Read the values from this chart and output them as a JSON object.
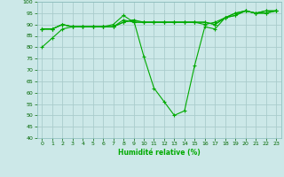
{
  "xlabel": "Humidité relative (%)",
  "background_color": "#cce8e8",
  "grid_color": "#aacccc",
  "line_color": "#00aa00",
  "xlim": [
    -0.5,
    23.5
  ],
  "ylim": [
    40,
    100
  ],
  "yticks": [
    40,
    45,
    50,
    55,
    60,
    65,
    70,
    75,
    80,
    85,
    90,
    95,
    100
  ],
  "xticks": [
    0,
    1,
    2,
    3,
    4,
    5,
    6,
    7,
    8,
    9,
    10,
    11,
    12,
    13,
    14,
    15,
    16,
    17,
    18,
    19,
    20,
    21,
    22,
    23
  ],
  "series": [
    {
      "x": [
        0,
        1,
        2,
        3,
        4,
        5,
        6,
        7,
        8,
        9,
        10,
        11,
        12,
        13,
        14,
        15,
        16,
        17,
        18,
        19,
        20,
        21,
        22,
        23
      ],
      "y": [
        80,
        84,
        88,
        89,
        89,
        89,
        89,
        89,
        91,
        92,
        76,
        62,
        56,
        50,
        52,
        72,
        89,
        88,
        93,
        94,
        96,
        95,
        96,
        96
      ]
    },
    {
      "x": [
        0,
        1,
        2,
        3,
        4,
        5,
        6,
        7,
        8,
        9,
        10,
        11,
        12,
        13,
        14,
        15,
        16,
        17,
        18,
        19,
        20,
        21,
        22,
        23
      ],
      "y": [
        88,
        88,
        90,
        89,
        89,
        89,
        89,
        89,
        92,
        91,
        91,
        91,
        91,
        91,
        91,
        91,
        90,
        91,
        93,
        95,
        96,
        95,
        96,
        96
      ]
    },
    {
      "x": [
        0,
        1,
        2,
        3,
        4,
        5,
        6,
        7,
        8,
        9,
        10,
        11,
        12,
        13,
        14,
        15,
        16,
        17,
        18,
        19,
        20,
        21,
        22,
        23
      ],
      "y": [
        88,
        88,
        90,
        89,
        89,
        89,
        89,
        90,
        94,
        91,
        91,
        91,
        91,
        91,
        91,
        91,
        91,
        90,
        93,
        95,
        96,
        95,
        95,
        96
      ]
    },
    {
      "x": [
        0,
        1,
        2,
        3,
        4,
        5,
        6,
        7,
        8,
        9,
        10,
        11,
        12,
        13,
        14,
        15,
        16,
        17,
        18,
        19,
        20,
        21,
        22,
        23
      ],
      "y": [
        88,
        88,
        90,
        89,
        89,
        89,
        89,
        89,
        91,
        92,
        91,
        91,
        91,
        91,
        91,
        91,
        91,
        90,
        93,
        94,
        96,
        95,
        95,
        96
      ]
    }
  ]
}
